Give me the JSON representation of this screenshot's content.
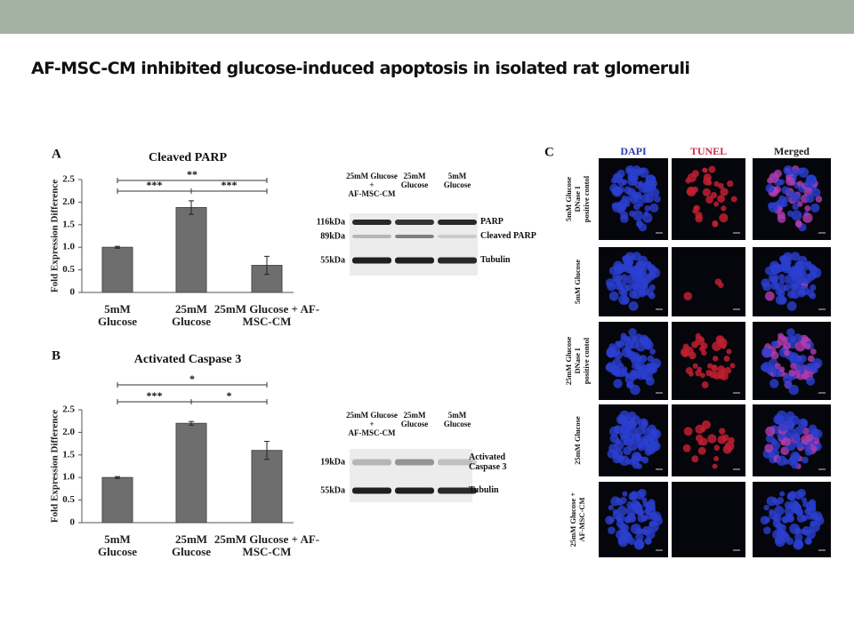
{
  "slide_title": "AF-MSC-CM inhibited glucose-induced apoptosis in isolated rat glomeruli",
  "chart_data": [
    {
      "type": "bar",
      "panel": "A",
      "title": "Cleaved PARP",
      "y_label": "Fold Expression Difference",
      "categories": [
        "5mM Glucose",
        "25mM Glucose",
        "25mM Glucose + AF-MSC-CM"
      ],
      "values": [
        1.0,
        1.88,
        0.6
      ],
      "errors": [
        0.02,
        0.15,
        0.2
      ],
      "color": "#6e6e6e",
      "ylim": [
        0,
        2.5
      ],
      "yticks": [
        0,
        0.5,
        {
          "value": 1,
          "label": "1.0"
        },
        1.5,
        {
          "value": 2,
          "label": "2.0"
        },
        2.5
      ],
      "significance": [
        {
          "label": "**",
          "from": 0,
          "to": 2
        },
        {
          "label": "***",
          "from": 0,
          "to": 1
        },
        {
          "label": "***",
          "from": 1,
          "to": 2
        }
      ]
    },
    {
      "type": "bar",
      "panel": "B",
      "title": "Activated Caspase 3",
      "y_label": "Fold Expression Difference",
      "categories": [
        "5mM Glucose",
        "25mM Glucose",
        "25mM Glucose + AF-MSC-CM"
      ],
      "values": [
        1.0,
        2.2,
        1.6
      ],
      "errors": [
        0.02,
        0.04,
        0.2
      ],
      "color": "#6e6e6e",
      "ylim": [
        0,
        2.5
      ],
      "yticks": [
        0,
        0.5,
        {
          "value": 1,
          "label": "1.0"
        },
        1.5,
        {
          "value": 2,
          "label": "2.0"
        },
        2.5
      ],
      "significance": [
        {
          "label": "*",
          "from": 0,
          "to": 2
        },
        {
          "label": "***",
          "from": 0,
          "to": 1
        },
        {
          "label": "*",
          "from": 1,
          "to": 2
        }
      ]
    }
  ],
  "blot_a": {
    "columns": [
      [
        "25mM Glucose",
        "+",
        "AF-MSC-CM"
      ],
      [
        "25mM",
        "Glucose"
      ],
      [
        "5mM",
        "Glucose"
      ]
    ],
    "rows": [
      {
        "size": "116kDa",
        "protein": "PARP"
      },
      {
        "size": "89kDa",
        "protein": "Cleaved PARP"
      },
      {
        "size": "55kDa",
        "protein": "Tubulin"
      }
    ]
  },
  "blot_b": {
    "columns": [
      [
        "25mM Glucose",
        "+",
        "AF-MSC-CM"
      ],
      [
        "25mM",
        "Glucose"
      ],
      [
        "5mM",
        "Glucose"
      ]
    ],
    "rows": [
      {
        "size": "19kDa",
        "protein": "Activated Caspase 3"
      },
      {
        "size": "55kDa",
        "protein": "Tubulin"
      }
    ]
  },
  "panel_c": {
    "label": "C",
    "columns": [
      "DAPI",
      "TUNEL",
      "Merged"
    ],
    "rows": [
      [
        "5mM Glucose",
        "DNase I",
        "positive contol"
      ],
      [
        "5mM Glucose"
      ],
      [
        "25mM Glucose",
        "DNase I",
        "positive contol"
      ],
      [
        "25mM Glucose"
      ],
      [
        "25mM Glucose +",
        "AF-MSC-CM"
      ]
    ]
  }
}
